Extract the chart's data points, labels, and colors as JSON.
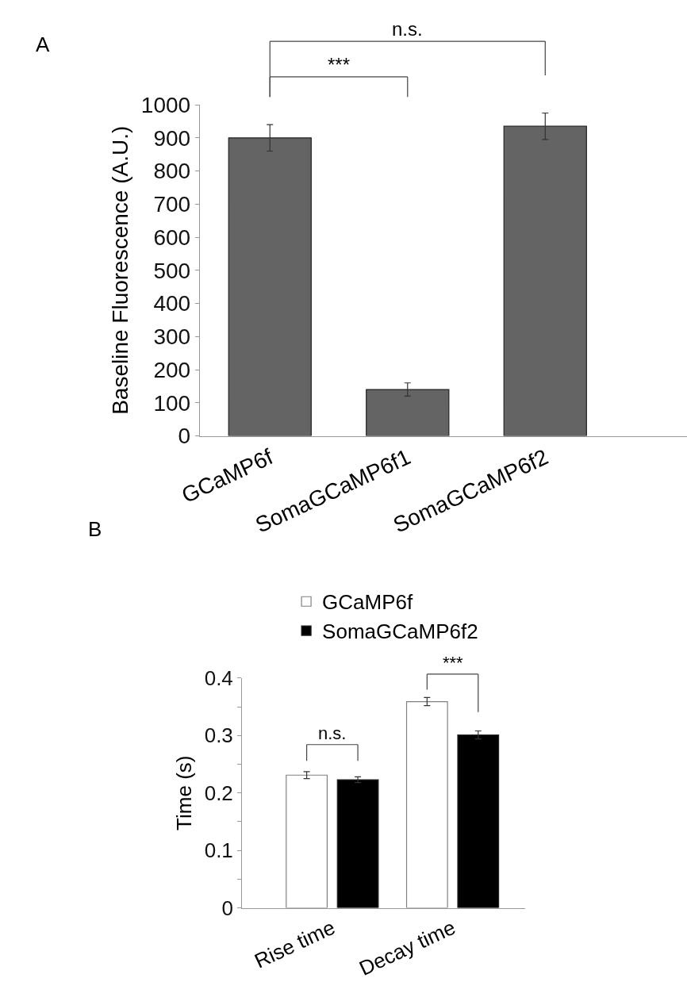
{
  "chart_data": [
    {
      "type": "bar",
      "categories": [
        "GCaMP6f",
        "SomaGCaMP6f1",
        "SomaGCaMP6f2"
      ],
      "values": [
        900,
        140,
        935
      ],
      "errors": [
        40,
        20,
        40
      ],
      "color": "#646464",
      "ylabel": "Baseline Fluorescence (A.U.)",
      "ylim": [
        0,
        1000
      ],
      "yticks": [
        0,
        100,
        200,
        300,
        400,
        500,
        600,
        700,
        800,
        900,
        1000
      ],
      "legend": false,
      "annotations": [
        "A",
        "***",
        "n.s."
      ]
    },
    {
      "type": "bar",
      "categories": [
        "Rise time",
        "Decay time"
      ],
      "ylabel": "Time (s)",
      "ylim": [
        0,
        0.4
      ],
      "yticks": [
        0,
        {
          "value": 0.05,
          "label": null
        },
        0.1,
        {
          "value": 0.15,
          "label": null
        },
        0.2,
        {
          "value": 0.25,
          "label": null
        },
        0.3,
        {
          "value": 0.35,
          "label": null
        },
        0.4
      ],
      "legend": "top left",
      "series": [
        {
          "name": "GCaMP6f",
          "color": "#ffffff",
          "values": [
            0.231,
            0.359
          ],
          "errors": [
            0.006,
            0.007
          ]
        },
        {
          "name": "SomaGCaMP6f2",
          "color": "#000000",
          "values": [
            0.223,
            0.301
          ],
          "errors": [
            0.005,
            0.007
          ]
        }
      ],
      "annotations": [
        "B",
        "n.s.",
        "***"
      ]
    }
  ]
}
